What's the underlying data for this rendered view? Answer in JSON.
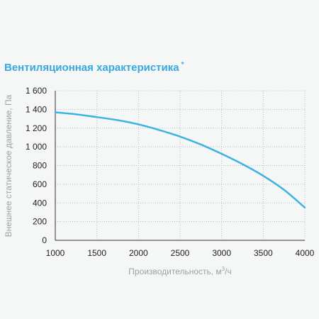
{
  "chart_data": {
    "type": "line",
    "title": "Вентиляционная характеристика",
    "title_mark": "*",
    "xlabel": "Производительность, м³/ч",
    "xlabel_parts": [
      "Производительность, м",
      "3",
      "/ч"
    ],
    "ylabel": "Внешнее статическое давление, Па",
    "xlim": [
      1000,
      4000
    ],
    "ylim": [
      0,
      1600
    ],
    "x_ticks": [
      "1000",
      "1500",
      "2000",
      "2500",
      "3000",
      "3500",
      "4000"
    ],
    "y_ticks": [
      "0",
      "200",
      "400",
      "600",
      "800",
      "1 000",
      "1 200",
      "1 400",
      "1 600"
    ],
    "grid": "dotted",
    "series": [
      {
        "x": [
          1000,
          1250,
          1500,
          1750,
          2000,
          2250,
          2500,
          2750,
          3000,
          3250,
          3500,
          3750,
          4000
        ],
        "y": [
          1370,
          1348,
          1318,
          1285,
          1240,
          1180,
          1110,
          1025,
          925,
          815,
          690,
          540,
          350
        ]
      }
    ],
    "colors": {
      "line": "#3cb3e2",
      "title": "#3aa8de",
      "axis_title": "#9aa3a9",
      "grid": "#b7bec2"
    }
  }
}
